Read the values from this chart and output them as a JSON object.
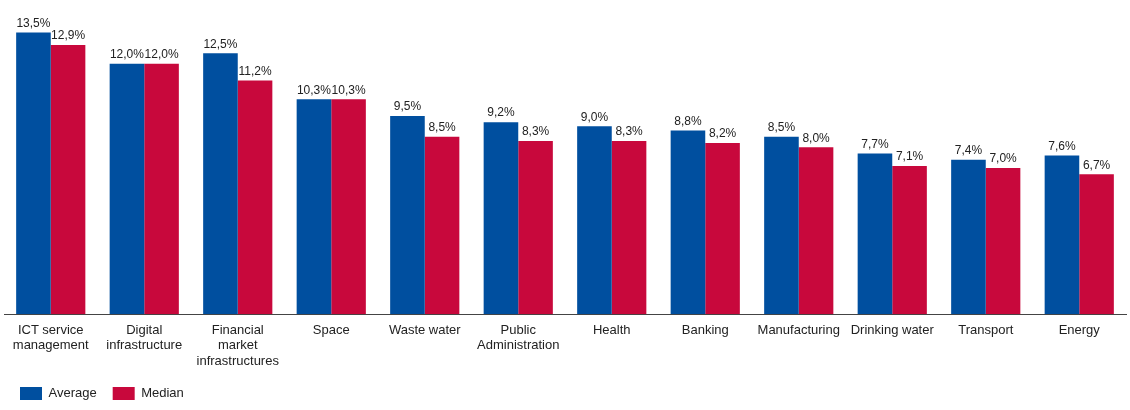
{
  "chart_data": {
    "type": "bar",
    "categories": [
      "ICT service\nmanagement",
      "Digital\ninfrastructure",
      "Financial\nmarket\ninfrastructures",
      "Space",
      "Waste water",
      "Public\nAdministration",
      "Health",
      "Banking",
      "Manufacturing",
      "Drinking water",
      "Transport",
      "Energy"
    ],
    "series": [
      {
        "name": "Average",
        "color": "#004f9f",
        "values": [
          13.5,
          12.0,
          12.5,
          10.3,
          9.5,
          9.2,
          9.0,
          8.8,
          8.5,
          7.7,
          7.4,
          7.6
        ],
        "value_labels": [
          "13,5%",
          "12,0%",
          "12,5%",
          "10,3%",
          "9,5%",
          "9,2%",
          "9,0%",
          "8,8%",
          "8,5%",
          "7,7%",
          "7,4%",
          "7,6%"
        ]
      },
      {
        "name": "Median",
        "color": "#c8083c",
        "values": [
          12.9,
          12.0,
          11.2,
          10.3,
          8.5,
          8.3,
          8.3,
          8.2,
          8.0,
          7.1,
          7.0,
          6.7
        ],
        "value_labels": [
          "12,9%",
          "12,0%",
          "11,2%",
          "10,3%",
          "8,5%",
          "8,3%",
          "8,3%",
          "8,2%",
          "8,0%",
          "7,1%",
          "7,0%",
          "6,7%"
        ]
      }
    ],
    "legend": "bottom left",
    "grid": false
  }
}
